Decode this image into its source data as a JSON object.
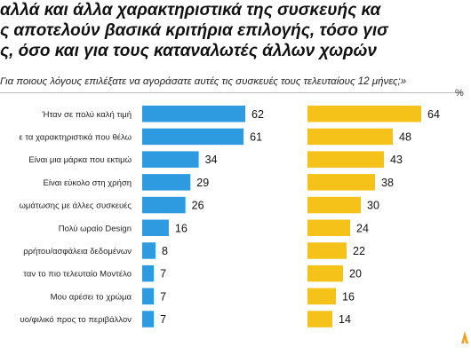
{
  "headline": {
    "lines": [
      "αλλά και άλλα χαρακτηριστικά της συσκευής κα",
      "ς αποτελούν βασικά κριτήρια επιλογής, τόσο γισ",
      "ς, όσο και για τους καταναλωτές άλλων χωρών"
    ]
  },
  "question": "Για ποιους λόγους επιλέξατε να αγοράσατε αυτές τις συσκευές τους τελευταίους 12 μήνες;»",
  "unit_marker": "%",
  "colors": {
    "series_1": "#2e9be0",
    "series_2": "#f5c21a",
    "logo": "#f0a020"
  },
  "chart_data": {
    "type": "bar",
    "orientation": "horizontal",
    "categories": [
      "Ήταν σε πολύ καλή τιμή",
      "ε τα χαρακτηριστικά που θέλω",
      "Είναι μια μάρκα που εκτιμώ",
      "Είναι εύκολο στη χρήση",
      "ωμάτωσης με άλλες συσκευές",
      "Πολύ ωραίο Design",
      "ρρήτου/ασφάλεια δεδομένων",
      "ταν το πιο τελευταίο Μοντέλο",
      "Μου αρέσει το χρώμα",
      "υο/φιλικό προς το περιβάλλον"
    ],
    "series": [
      {
        "values": [
          62,
          61,
          34,
          29,
          26,
          16,
          8,
          7,
          7,
          7
        ]
      },
      {
        "values": [
          64,
          48,
          43,
          38,
          30,
          24,
          22,
          20,
          16,
          14
        ]
      }
    ],
    "value_labels": [
      [
        "62",
        "61",
        "34",
        "29",
        "26",
        "16",
        "8",
        "7",
        "7",
        "7"
      ],
      [
        "64",
        "48",
        "43",
        "38",
        "30",
        "24",
        "22",
        "20",
        "16",
        "14"
      ]
    ]
  }
}
